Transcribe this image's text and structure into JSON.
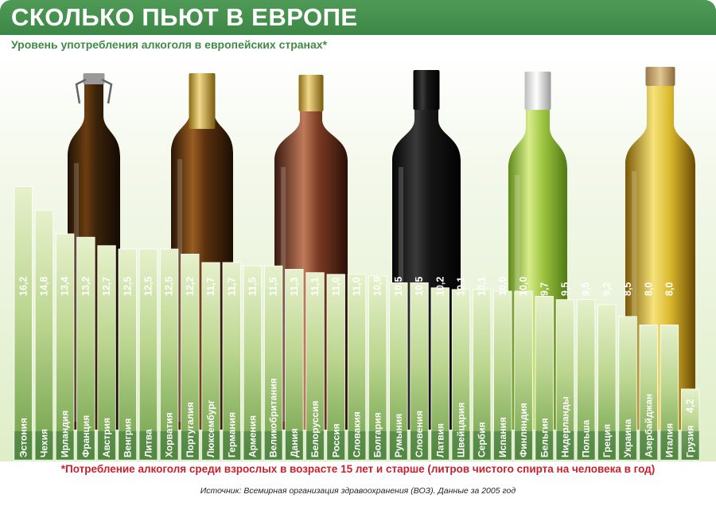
{
  "header": {
    "title": "СКОЛЬКО ПЬЮТ В ЕВРОПЕ",
    "subtitle": "Уровень употребления алкоголя в европейских странах*"
  },
  "footer": {
    "footnote": "*Потребление алкоголя среди взрослых в возрасте 15 лет и старше (литров чистого спирта на человека в год)",
    "source": "Источник: Всемирная организация здравоохранения (ВОЗ). Данные за 2005 год"
  },
  "colors": {
    "header_green": "#4a9552",
    "bar_top": "#e3efc5",
    "bar_bottom": "#6a9c45",
    "bar_base": "#2f6b3a",
    "footnote_red": "#c8202f"
  },
  "bottles": [
    "beer-bottle-icon",
    "champagne-bottle-icon",
    "cognac-bottle-icon",
    "red-wine-bottle-icon",
    "white-wine-bottle-icon",
    "olive-oil-like-bottle-icon"
  ],
  "chart_data": {
    "type": "bar",
    "categories": [
      "Эстония",
      "Чехия",
      "Ирландия",
      "Франция",
      "Австрия",
      "Венгрия",
      "Литва",
      "Хорватия",
      "Португалия",
      "Люксембург",
      "Германия",
      "Армения",
      "Великобритания",
      "Дания",
      "Белоруссия",
      "Россия",
      "Словакия",
      "Болгария",
      "Румыния",
      "Словения",
      "Латвия",
      "Швейцария",
      "Сербия",
      "Испания",
      "Финляндия",
      "Бельгия",
      "Нидерланды",
      "Польша",
      "Греция",
      "Украина",
      "Азербайджан",
      "Италия",
      "Грузия"
    ],
    "values": [
      16.2,
      14.8,
      13.4,
      13.2,
      12.7,
      12.5,
      12.5,
      12.5,
      12.2,
      11.7,
      11.7,
      11.5,
      11.5,
      11.3,
      11.1,
      11.0,
      11.0,
      10.9,
      10.5,
      10.5,
      10.2,
      10.1,
      10.1,
      10.0,
      10.0,
      9.7,
      9.5,
      9.5,
      9.2,
      8.5,
      8.0,
      8.0,
      4.2
    ],
    "value_labels": [
      "16,2",
      "14,8",
      "13,4",
      "13,2",
      "12,7",
      "12,5",
      "12,5",
      "12,5",
      "12,2",
      "11,7",
      "11,7",
      "11,5",
      "11,5",
      "11,3",
      "11,1",
      "11,0",
      "11,0",
      "10,9",
      "10,5",
      "10,5",
      "10,2",
      "10,1",
      "10,1",
      "10,0",
      "10,0",
      "9,7",
      "9,5",
      "9,5",
      "9,2",
      "8,5",
      "8,0",
      "8,0",
      "4,2"
    ],
    "ylim": [
      0,
      18
    ],
    "legend": "none",
    "grid": false
  }
}
